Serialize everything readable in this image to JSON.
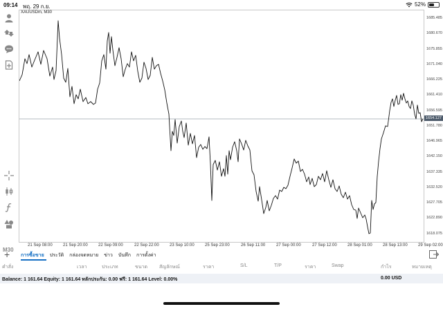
{
  "status_bar": {
    "time": "09:14",
    "date": "พฤ. 29 ก.ย.",
    "battery_percent": "52%",
    "battery_level": 0.52
  },
  "chart": {
    "symbol_label": "XAUUSDm, M30",
    "timeframe": "M30",
    "current_price": "1654.127",
    "line_color": "#111111",
    "price_ticks": [
      "1685.485",
      "1680.670",
      "1675.855",
      "1671.040",
      "1666.225",
      "1661.410",
      "1656.595",
      "1651.780",
      "1646.965",
      "1642.150",
      "1637.335",
      "1632.520",
      "1627.705",
      "1622.890",
      "1618.075"
    ],
    "time_ticks": [
      "21 Sep 08:00",
      "21 Sep 20:00",
      "22 Sep 09:00",
      "22 Sep 22:00",
      "23 Sep 10:00",
      "25 Sep 23:00",
      "26 Sep 11:00",
      "27 Sep 00:00",
      "27 Sep 12:00",
      "28 Sep 01:00",
      "28 Sep 13:00",
      "29 Sep 02:00"
    ]
  },
  "chart_data": {
    "type": "line",
    "title": "XAUUSDm, M30",
    "xlabel": "",
    "ylabel": "",
    "ylim": [
      1615.6,
      1688.1
    ],
    "x": [
      "21 Sep 08:00",
      "21 Sep 20:00",
      "22 Sep 09:00",
      "22 Sep 22:00",
      "23 Sep 10:00",
      "25 Sep 23:00",
      "26 Sep 11:00",
      "27 Sep 00:00",
      "27 Sep 12:00",
      "28 Sep 01:00",
      "28 Sep 13:00",
      "29 Sep 02:00"
    ],
    "y": [
      1668.4,
      1687.4,
      1677.8,
      1667.5,
      1644.4,
      1643.5,
      1631.9,
      1630.4,
      1631.4,
      1621.0,
      1653.3,
      1654.1
    ],
    "current_price": 1654.127,
    "grid": false
  },
  "tabs": [
    {
      "label": "การซื้อขาย",
      "active": true
    },
    {
      "label": "ประวัติ",
      "active": false
    },
    {
      "label": "กล่องจดหมาย",
      "active": false
    },
    {
      "label": "ข่าว",
      "active": false
    },
    {
      "label": "บันทึก",
      "active": false
    },
    {
      "label": "การตั้งค่า",
      "active": false
    }
  ],
  "columns": [
    "คำสั่ง",
    "เวลา",
    "ประเภท",
    "ขนาด",
    "สัญลักษณ์",
    "ราคา",
    "S/L",
    "T/P",
    "ราคา",
    "Swap",
    "กำไร",
    "หมายเหตุ"
  ],
  "balance_row": {
    "text": "Balance: 1 161.64 Equity: 1 161.64 หลักประกัน: 0.00 ฟรี: 1 161.64 Level: 0.00%",
    "profit": "0.00  USD"
  }
}
